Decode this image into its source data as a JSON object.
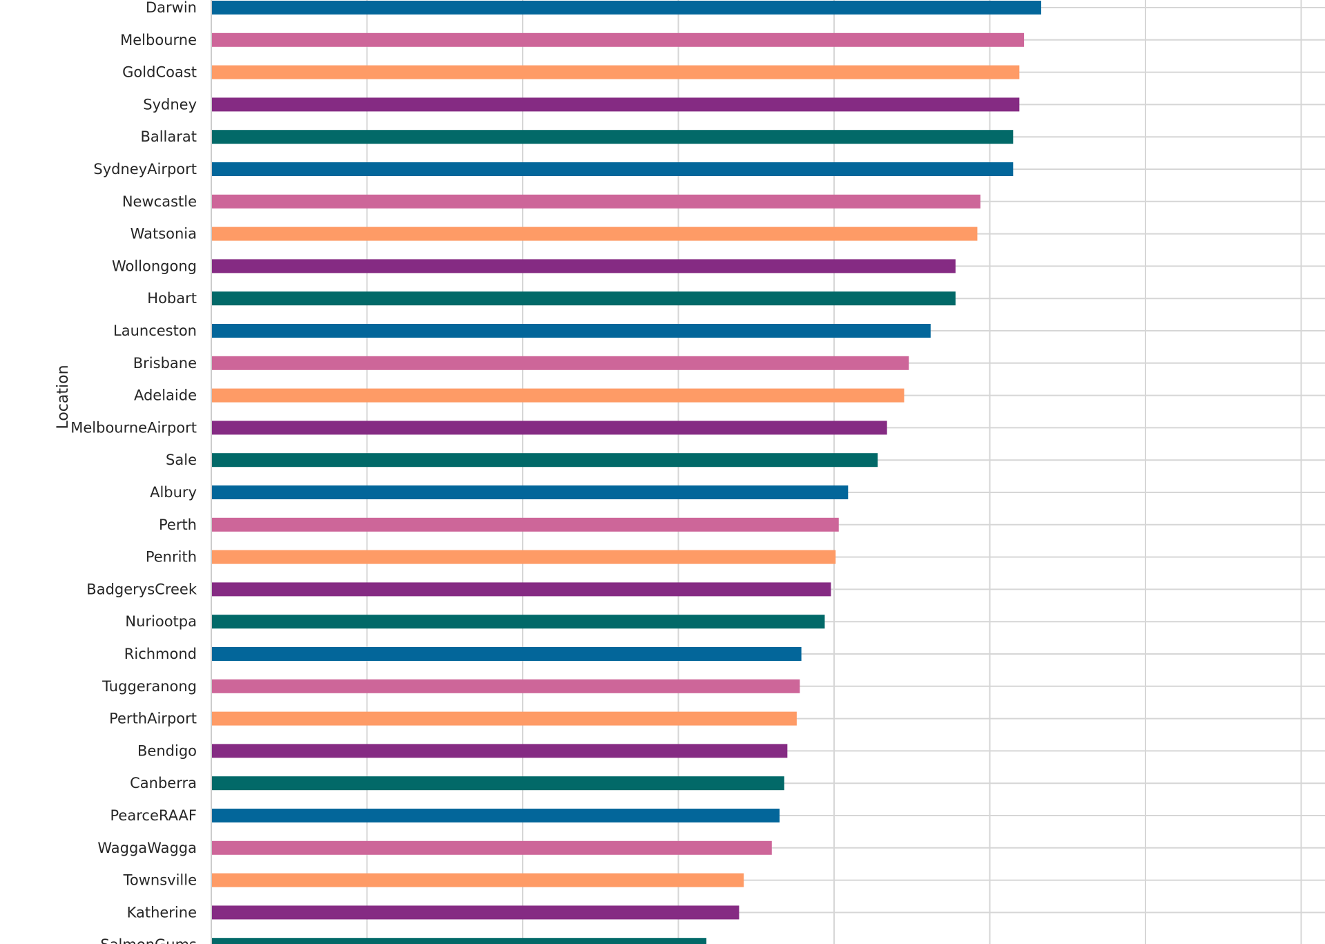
{
  "chart_data": {
    "type": "bar",
    "orientation": "horizontal",
    "ylabel": "Location",
    "xlabel": "",
    "xlim": [
      0,
      7
    ],
    "grid": true,
    "categories": [
      "Darwin",
      "Melbourne",
      "GoldCoast",
      "Sydney",
      "Ballarat",
      "SydneyAirport",
      "Newcastle",
      "Watsonia",
      "Wollongong",
      "Hobart",
      "Launceston",
      "Brisbane",
      "Adelaide",
      "MelbourneAirport",
      "Sale",
      "Albury",
      "Perth",
      "Penrith",
      "BadgerysCreek",
      "Nuriootpa",
      "Richmond",
      "Tuggeranong",
      "PerthAirport",
      "Bendigo",
      "Canberra",
      "PearceRAAF",
      "WaggaWagga",
      "Townsville",
      "Katherine",
      "SalmonGums"
    ],
    "values": [
      5.33,
      5.22,
      5.19,
      5.19,
      5.15,
      5.15,
      4.94,
      4.92,
      4.78,
      4.78,
      4.62,
      4.48,
      4.45,
      4.34,
      4.28,
      4.09,
      4.03,
      4.01,
      3.98,
      3.94,
      3.79,
      3.78,
      3.76,
      3.7,
      3.68,
      3.65,
      3.6,
      3.42,
      3.39,
      3.18
    ],
    "colors": [
      "#03669a",
      "#cd6699",
      "#fe9b66",
      "#852b83",
      "#026968"
    ]
  }
}
